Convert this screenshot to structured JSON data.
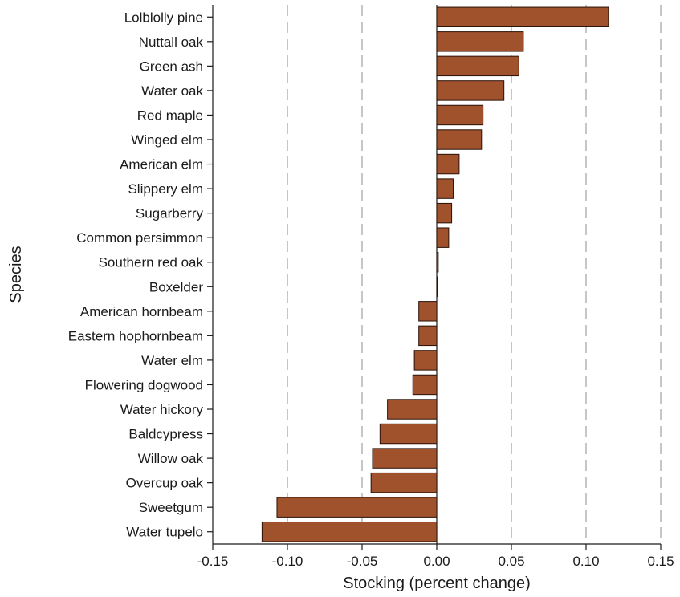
{
  "chart_data": {
    "type": "bar",
    "orientation": "horizontal",
    "title": "",
    "xlabel": "Stocking (percent change)",
    "ylabel": "Species",
    "xlim": [
      -0.15,
      0.15
    ],
    "xticks": [
      -0.15,
      -0.1,
      -0.05,
      0.0,
      0.05,
      0.1,
      0.15
    ],
    "xtick_labels": [
      "-0.15",
      "-0.10",
      "-0.05",
      "0.00",
      "0.05",
      "0.10",
      "0.15"
    ],
    "grid": "vertical dashed",
    "bar_color": "#a0522d",
    "categories": [
      "Lolblolly pine",
      "Nuttall oak",
      "Green ash",
      "Water oak",
      "Red maple",
      "Winged elm",
      "American elm",
      "Slippery elm",
      "Sugarberry",
      "Common persimmon",
      "Southern red oak",
      "Boxelder",
      "American hornbeam",
      "Eastern hophornbeam",
      "Water elm",
      "Flowering dogwood",
      "Water hickory",
      "Baldcypress",
      "Willow oak",
      "Overcup oak",
      "Sweetgum",
      "Water tupelo"
    ],
    "values": [
      0.115,
      0.058,
      0.055,
      0.045,
      0.031,
      0.03,
      0.015,
      0.011,
      0.01,
      0.008,
      0.001,
      0.0005,
      -0.012,
      -0.012,
      -0.015,
      -0.016,
      -0.033,
      -0.038,
      -0.043,
      -0.044,
      -0.107,
      -0.117
    ]
  }
}
